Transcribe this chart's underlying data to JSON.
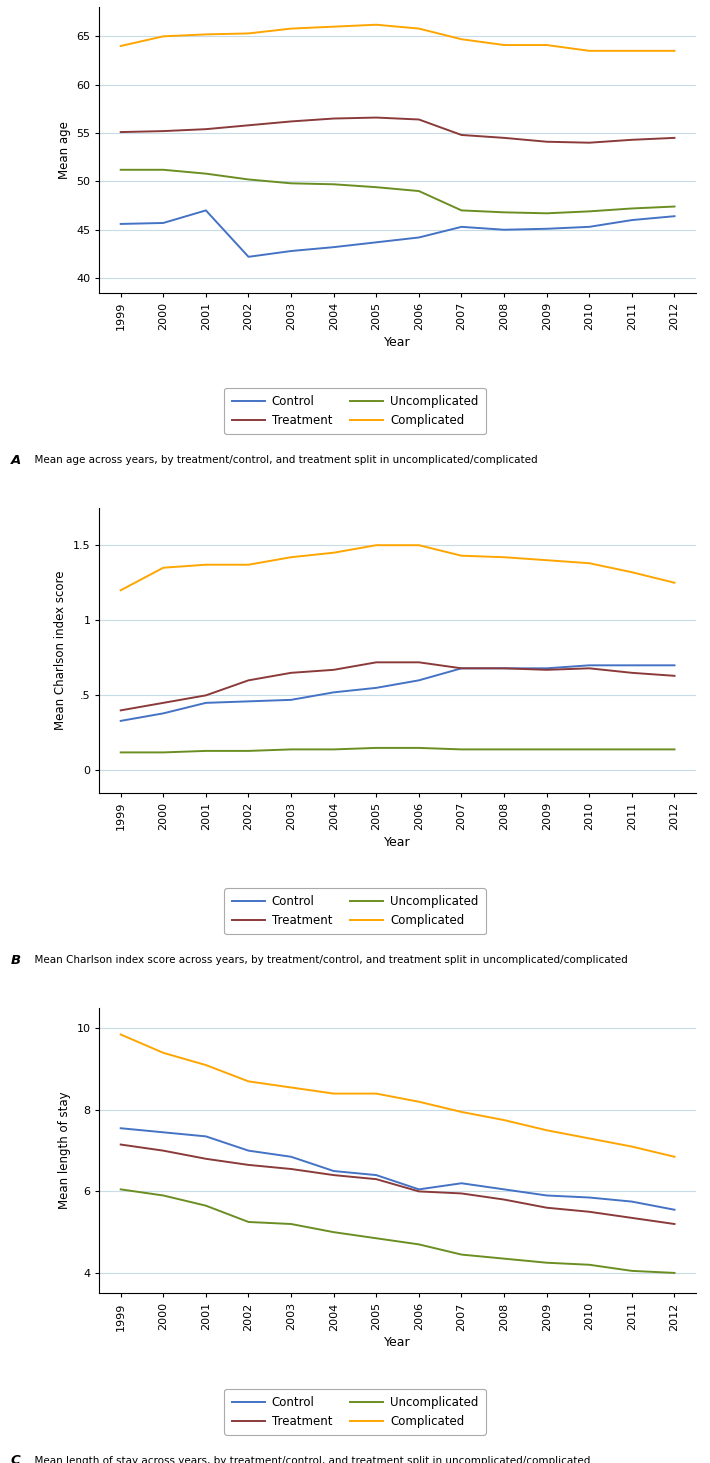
{
  "years": [
    1999,
    2000,
    2001,
    2002,
    2003,
    2004,
    2005,
    2006,
    2007,
    2008,
    2009,
    2010,
    2011,
    2012
  ],
  "panel_A": {
    "ylabel": "Mean age",
    "ylim": [
      38.5,
      68
    ],
    "yticks": [
      40,
      45,
      50,
      55,
      60,
      65
    ],
    "ytick_labels": [
      "40",
      "45",
      "50",
      "55",
      "60",
      "65"
    ],
    "control": [
      45.6,
      45.7,
      47.0,
      42.2,
      42.8,
      43.2,
      43.7,
      44.2,
      45.3,
      45.0,
      45.1,
      45.3,
      46.0,
      46.4
    ],
    "treatment": [
      55.1,
      55.2,
      55.4,
      55.8,
      56.2,
      56.5,
      56.6,
      56.4,
      54.8,
      54.5,
      54.1,
      54.0,
      54.3,
      54.5
    ],
    "uncomplicated": [
      51.2,
      51.2,
      50.8,
      50.2,
      49.8,
      49.7,
      49.4,
      49.0,
      47.0,
      46.8,
      46.7,
      46.9,
      47.2,
      47.4
    ],
    "complicated": [
      64.0,
      65.0,
      65.2,
      65.3,
      65.8,
      66.0,
      66.2,
      65.8,
      64.7,
      64.1,
      64.1,
      63.5,
      63.5,
      63.5
    ],
    "caption_letter": "A",
    "caption_text": "  Mean age across years, by treatment/control, and treatment split in uncomplicated/complicated"
  },
  "panel_B": {
    "ylabel": "Mean Charlson index score",
    "ylim": [
      -0.15,
      1.75
    ],
    "yticks": [
      0,
      0.5,
      1.0,
      1.5
    ],
    "ytick_labels": [
      "0",
      ".5",
      "1",
      "1.5"
    ],
    "control": [
      0.33,
      0.38,
      0.45,
      0.46,
      0.47,
      0.52,
      0.55,
      0.6,
      0.68,
      0.68,
      0.68,
      0.7,
      0.7,
      0.7
    ],
    "treatment": [
      0.4,
      0.45,
      0.5,
      0.6,
      0.65,
      0.67,
      0.72,
      0.72,
      0.68,
      0.68,
      0.67,
      0.68,
      0.65,
      0.63
    ],
    "uncomplicated": [
      0.12,
      0.12,
      0.13,
      0.13,
      0.14,
      0.14,
      0.15,
      0.15,
      0.14,
      0.14,
      0.14,
      0.14,
      0.14,
      0.14
    ],
    "complicated": [
      1.2,
      1.35,
      1.37,
      1.37,
      1.42,
      1.45,
      1.5,
      1.5,
      1.43,
      1.42,
      1.4,
      1.38,
      1.32,
      1.25
    ],
    "caption_letter": "B",
    "caption_text": "  Mean Charlson index score across years, by treatment/control, and treatment split in uncomplicated/complicated"
  },
  "panel_C": {
    "ylabel": "Mean length of stay",
    "ylim": [
      3.5,
      10.5
    ],
    "yticks": [
      4,
      6,
      8,
      10
    ],
    "ytick_labels": [
      "4",
      "6",
      "8",
      "10"
    ],
    "control": [
      7.55,
      7.45,
      7.35,
      7.0,
      6.85,
      6.5,
      6.4,
      6.05,
      6.2,
      6.05,
      5.9,
      5.85,
      5.75,
      5.55
    ],
    "treatment": [
      7.15,
      7.0,
      6.8,
      6.65,
      6.55,
      6.4,
      6.3,
      6.0,
      5.95,
      5.8,
      5.6,
      5.5,
      5.35,
      5.2
    ],
    "uncomplicated": [
      6.05,
      5.9,
      5.65,
      5.25,
      5.2,
      5.0,
      4.85,
      4.7,
      4.45,
      4.35,
      4.25,
      4.2,
      4.05,
      4.0
    ],
    "complicated": [
      9.85,
      9.4,
      9.1,
      8.7,
      8.55,
      8.4,
      8.4,
      8.2,
      7.95,
      7.75,
      7.5,
      7.3,
      7.1,
      6.85
    ],
    "caption_letter": "C",
    "caption_text": "  Mean length of stay across years, by treatment/control, and treatment split in uncomplicated/complicated"
  },
  "colors": {
    "control": "#4472C4",
    "treatment": "#8B3A3A",
    "uncomplicated": "#6B8E23",
    "complicated": "#FFA500"
  },
  "legend_labels": {
    "control": "Control",
    "treatment": "Treatment",
    "uncomplicated": "Uncomplicated",
    "complicated": "Complicated"
  },
  "line_width": 1.4,
  "grid_color": "#c8dce8",
  "xlabel": "Year"
}
